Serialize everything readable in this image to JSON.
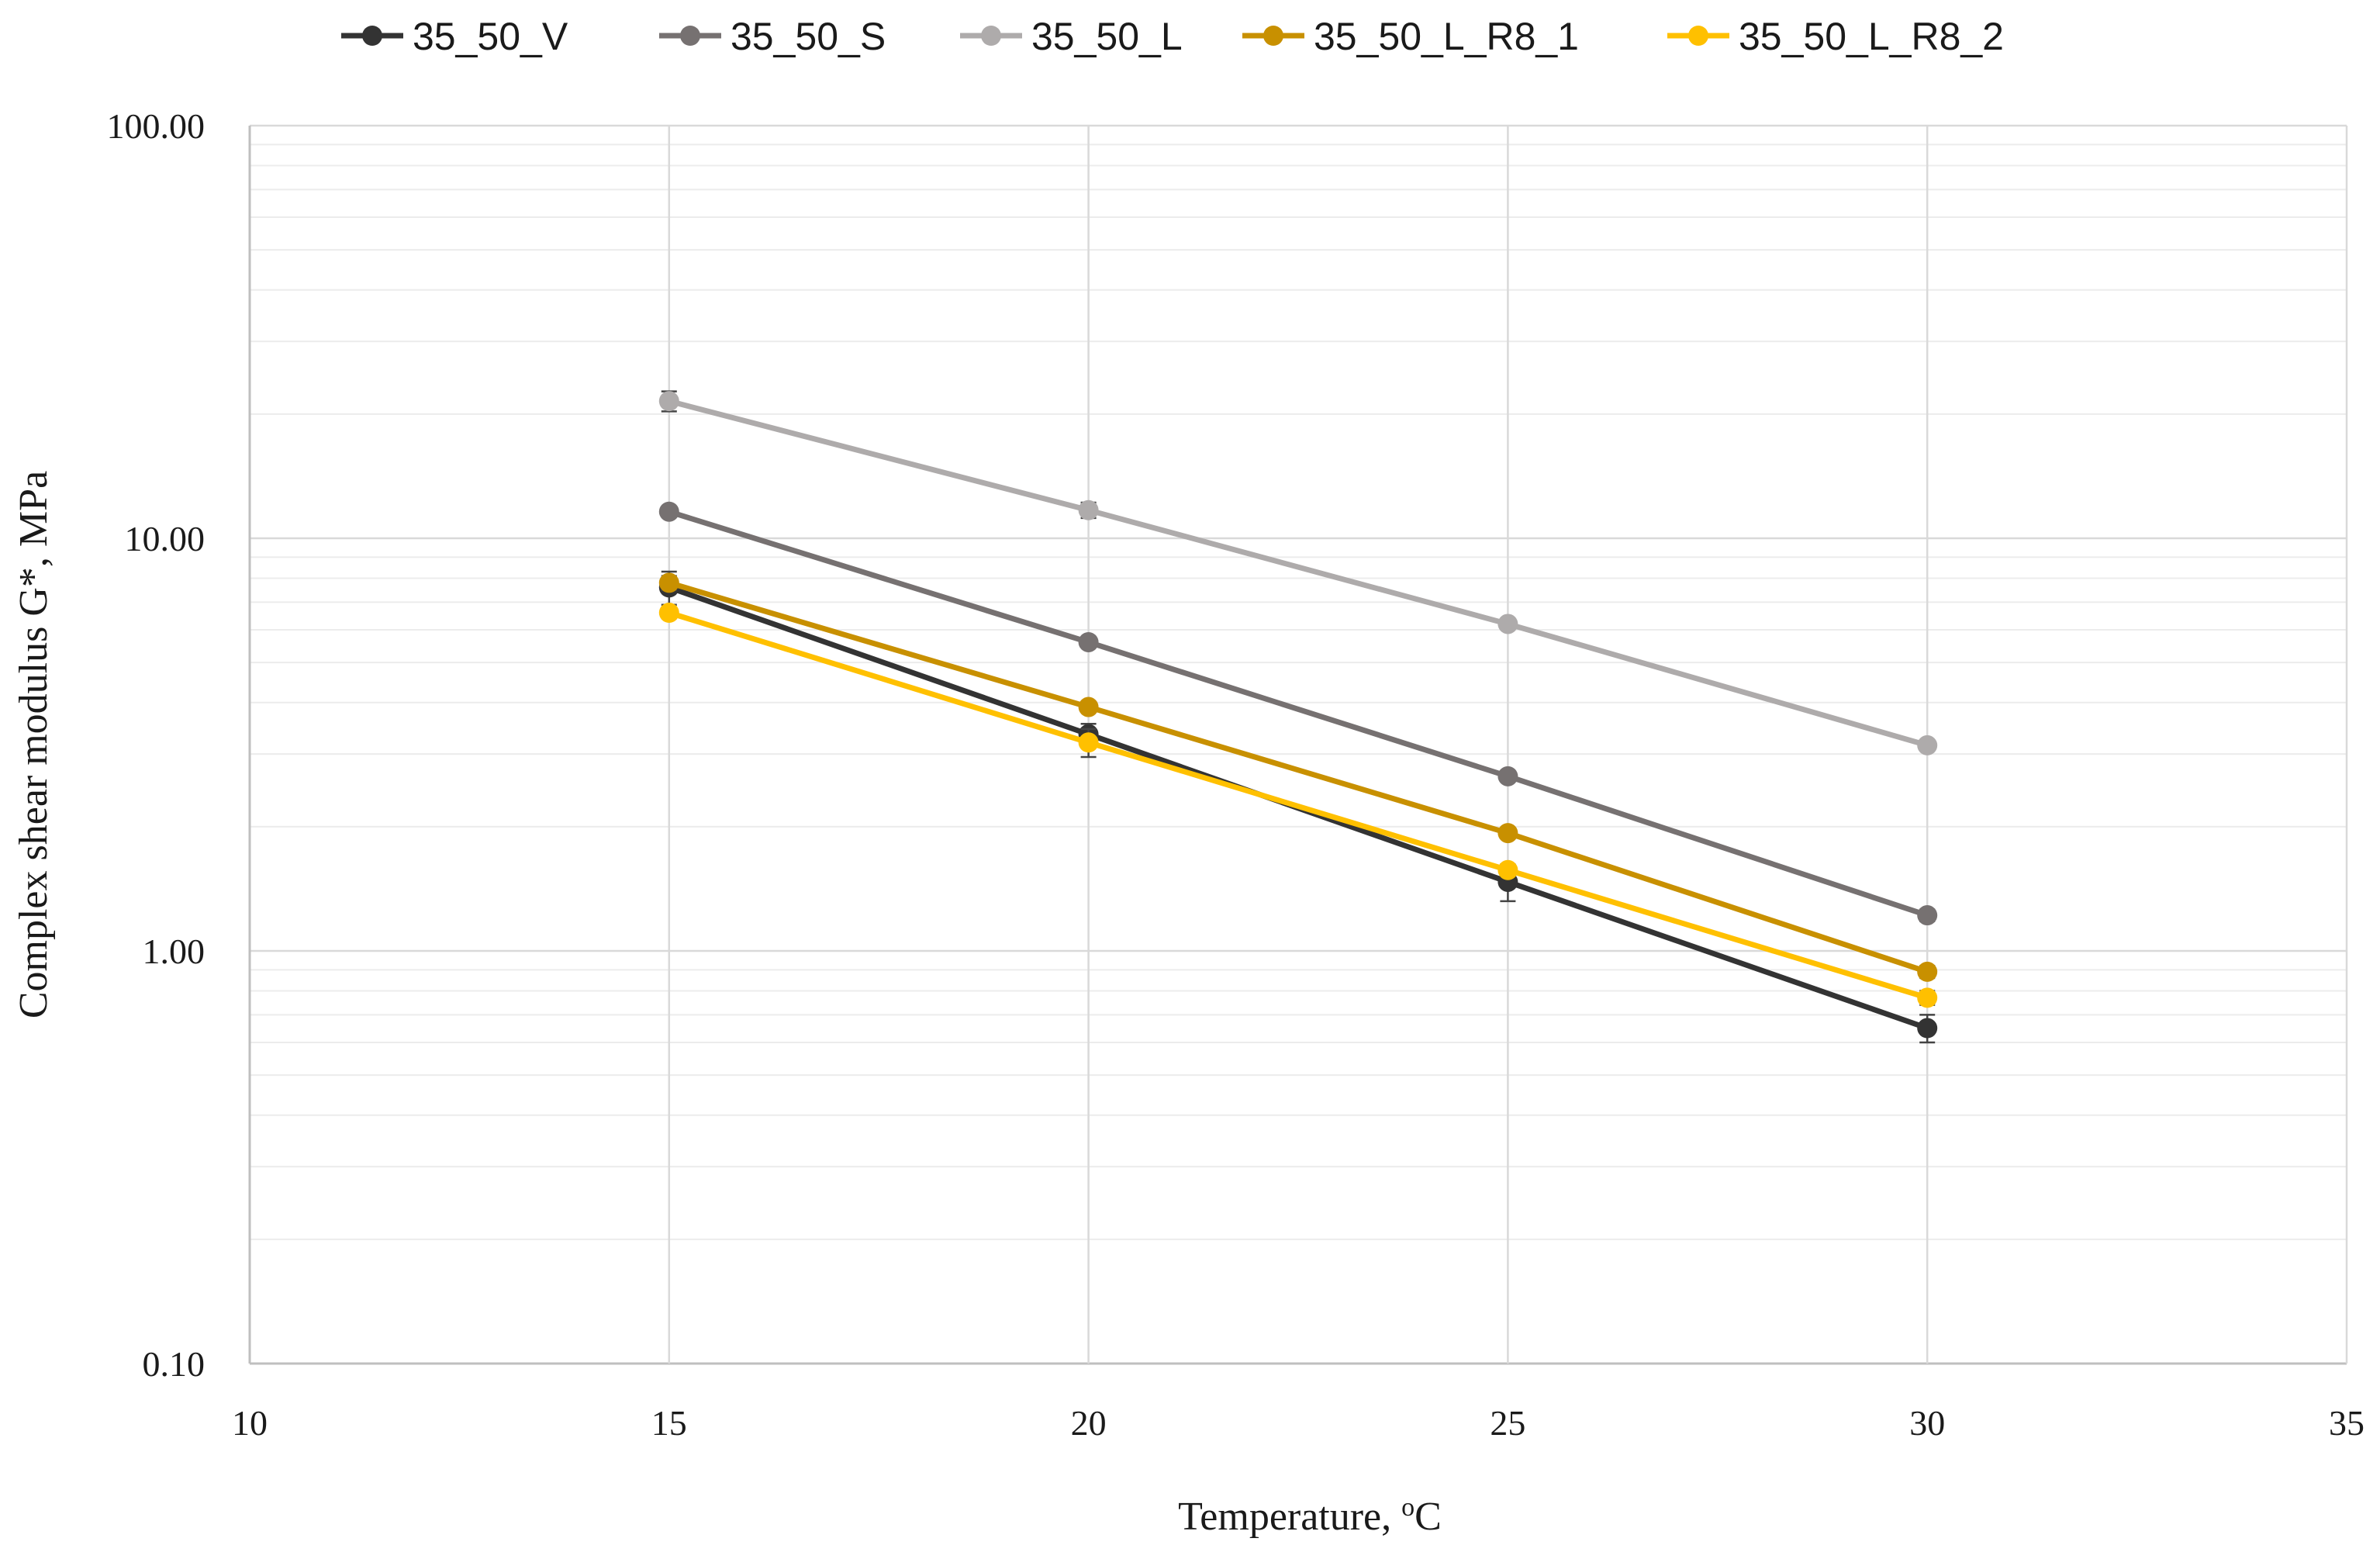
{
  "chart_data": {
    "type": "line",
    "title": "",
    "xlabel": "Temperature, ",
    "xlabel_unit_sup": "o",
    "xlabel_unit": "C",
    "ylabel": "Complex shear modulus G*, MPa",
    "xlim": [
      10,
      35
    ],
    "xticks": [
      10,
      15,
      20,
      25,
      30,
      35
    ],
    "xtick_labels": [
      "10",
      "15",
      "20",
      "25",
      "30",
      "35"
    ],
    "ylim": [
      0.1,
      100
    ],
    "yscale": "log",
    "yticks": [
      0.1,
      1,
      10,
      100
    ],
    "ytick_labels": [
      "0.10",
      "1.00",
      "10.00",
      "100.00"
    ],
    "grid": true,
    "legend_position": "top",
    "x": [
      15,
      20,
      25,
      30
    ],
    "series": [
      {
        "name": "35_50_V",
        "color": "#333333",
        "values": [
          7.6,
          3.35,
          1.47,
          0.65
        ],
        "errors": [
          0.7,
          0.2,
          0.15,
          0.05
        ]
      },
      {
        "name": "35_50_S",
        "color": "#767171",
        "values": [
          11.6,
          5.6,
          2.65,
          1.22
        ],
        "errors": [
          0.3,
          0.15,
          0.08,
          0.04
        ]
      },
      {
        "name": "35_50_L",
        "color": "#AEABAB",
        "values": [
          21.5,
          11.7,
          6.2,
          3.15
        ],
        "errors": [
          1.2,
          0.5,
          0.15,
          0.08
        ]
      },
      {
        "name": "35_50_L_R8_1",
        "color": "#C89000",
        "values": [
          7.8,
          3.9,
          1.93,
          0.89
        ],
        "errors": [
          0.3,
          0.1,
          0.05,
          0.03
        ]
      },
      {
        "name": "35_50_L_R8_2",
        "color": "#FFC000",
        "values": [
          6.6,
          3.2,
          1.57,
          0.77
        ],
        "errors": [
          0.2,
          0.25,
          0.05,
          0.03
        ]
      }
    ]
  }
}
